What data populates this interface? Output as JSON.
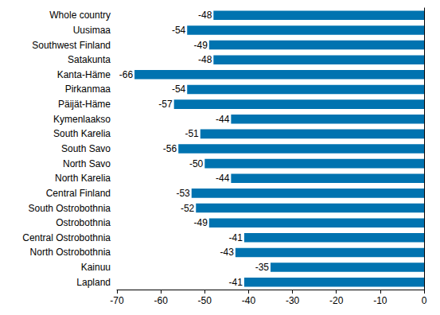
{
  "chart_data": {
    "type": "bar",
    "orientation": "horizontal",
    "categories": [
      "Whole country",
      "Uusimaa",
      "Southwest Finland",
      "Satakunta",
      "Kanta-Häme",
      "Pirkanmaa",
      "Päijät-Häme",
      "Kymenlaakso",
      "South Karelia",
      "South Savo",
      "North Savo",
      "North Karelia",
      "Central Finland",
      "South Ostrobothnia",
      "Ostrobothnia",
      "Central Ostrobothnia",
      "North Ostrobothnia",
      "Kainuu",
      "Lapland"
    ],
    "values": [
      -48,
      -54,
      -49,
      -48,
      -66,
      -54,
      -57,
      -44,
      -51,
      -56,
      -50,
      -44,
      -53,
      -52,
      -49,
      -41,
      -43,
      -35,
      -41
    ],
    "color": "#0073b0",
    "xlim": [
      -70,
      0
    ],
    "xticks": [
      -70,
      -60,
      -50,
      -40,
      -30,
      -20,
      -10,
      0
    ],
    "grid": false,
    "data_labels": true
  }
}
